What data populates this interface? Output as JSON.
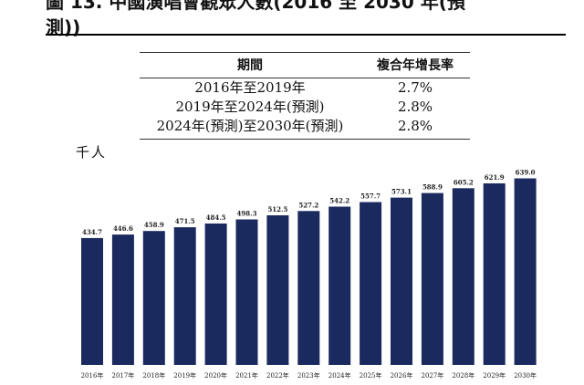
{
  "header": {
    "title_line1": "圖 13. 中國演唱會觀眾人數(2016 至 2030 年(預",
    "title_line2": "測))"
  },
  "cagr_table": {
    "headers": [
      "期間",
      "複合年增長率"
    ],
    "rows": [
      {
        "period": "2016年至2019年",
        "rate": "2.7%"
      },
      {
        "period": "2019年至2024年(預測)",
        "rate": "2.8%"
      },
      {
        "period": "2024年(預測)至2030年(預測)",
        "rate": "2.8%"
      }
    ]
  },
  "chart_data": {
    "type": "bar",
    "unit_label": "千人",
    "categories": [
      "2016年",
      "2017年",
      "2018年",
      "2019年",
      "2020年(預測)",
      "2021年(預測)",
      "2022年(預測)",
      "2023年(預測)",
      "2024年(預測)",
      "2025年(預測)",
      "2026年(預測)",
      "2027年(預測)",
      "2028年(預測)",
      "2029年(預測)",
      "2030年(預測)"
    ],
    "category_display": [
      "2016年",
      "2017年",
      "2018年",
      "2019年",
      "2020年",
      "2021年",
      "2022年",
      "2023年",
      "2024年",
      "2025年",
      "2026年",
      "2027年",
      "2028年",
      "2029年",
      "2030年"
    ],
    "values": [
      434.7,
      446.6,
      458.9,
      471.5,
      484.5,
      498.3,
      512.5,
      527.2,
      542.2,
      557.7,
      573.1,
      588.9,
      605.2,
      621.9,
      639.0
    ],
    "value_labels": [
      "434.7",
      "446.6",
      "458.9",
      "471.5",
      "484.5",
      "498.3",
      "512.5",
      "527.2",
      "542.2",
      "557.7",
      "573.1",
      "588.9",
      "605.2",
      "621.9",
      "639.0"
    ],
    "bar_color": "#1b2a5e",
    "ylim": [
      0,
      700
    ],
    "grid": false
  }
}
